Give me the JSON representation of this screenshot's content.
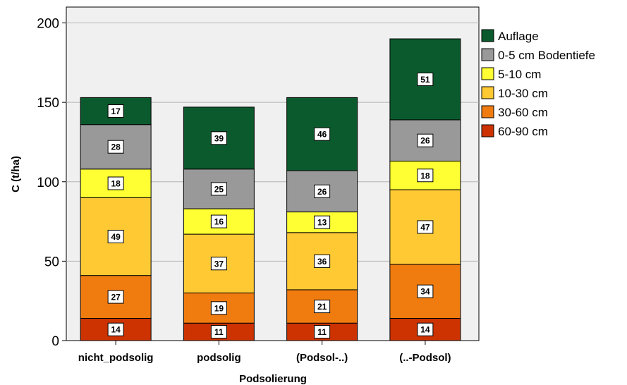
{
  "chart_data": {
    "type": "bar",
    "stacked": true,
    "categories": [
      "nicht_podsolig",
      "podsolig",
      "(Podsol-..)",
      "(..-Podsol)"
    ],
    "series": [
      {
        "name": "60-90 cm",
        "color": "#cc3300",
        "values": [
          14,
          11,
          11,
          14
        ]
      },
      {
        "name": "30-60 cm",
        "color": "#f07c10",
        "values": [
          27,
          19,
          21,
          34
        ]
      },
      {
        "name": "10-30 cm",
        "color": "#ffc934",
        "values": [
          49,
          37,
          36,
          47
        ]
      },
      {
        "name": "5-10 cm",
        "color": "#ffff33",
        "values": [
          18,
          16,
          13,
          18
        ]
      },
      {
        "name": "0-5 cm Bodentiefe",
        "color": "#999999",
        "values": [
          28,
          25,
          26,
          26
        ]
      },
      {
        "name": "Auflage",
        "color": "#0b5a2d",
        "values": [
          17,
          39,
          46,
          51
        ]
      }
    ],
    "xlabel": "Podsolierung",
    "ylabel": "C (t/ha)",
    "ylim": [
      0,
      210
    ],
    "yticks": [
      0,
      50,
      100,
      150,
      200
    ],
    "grid": true,
    "legend_position": "right",
    "plot_background": "#f0f0f0"
  }
}
